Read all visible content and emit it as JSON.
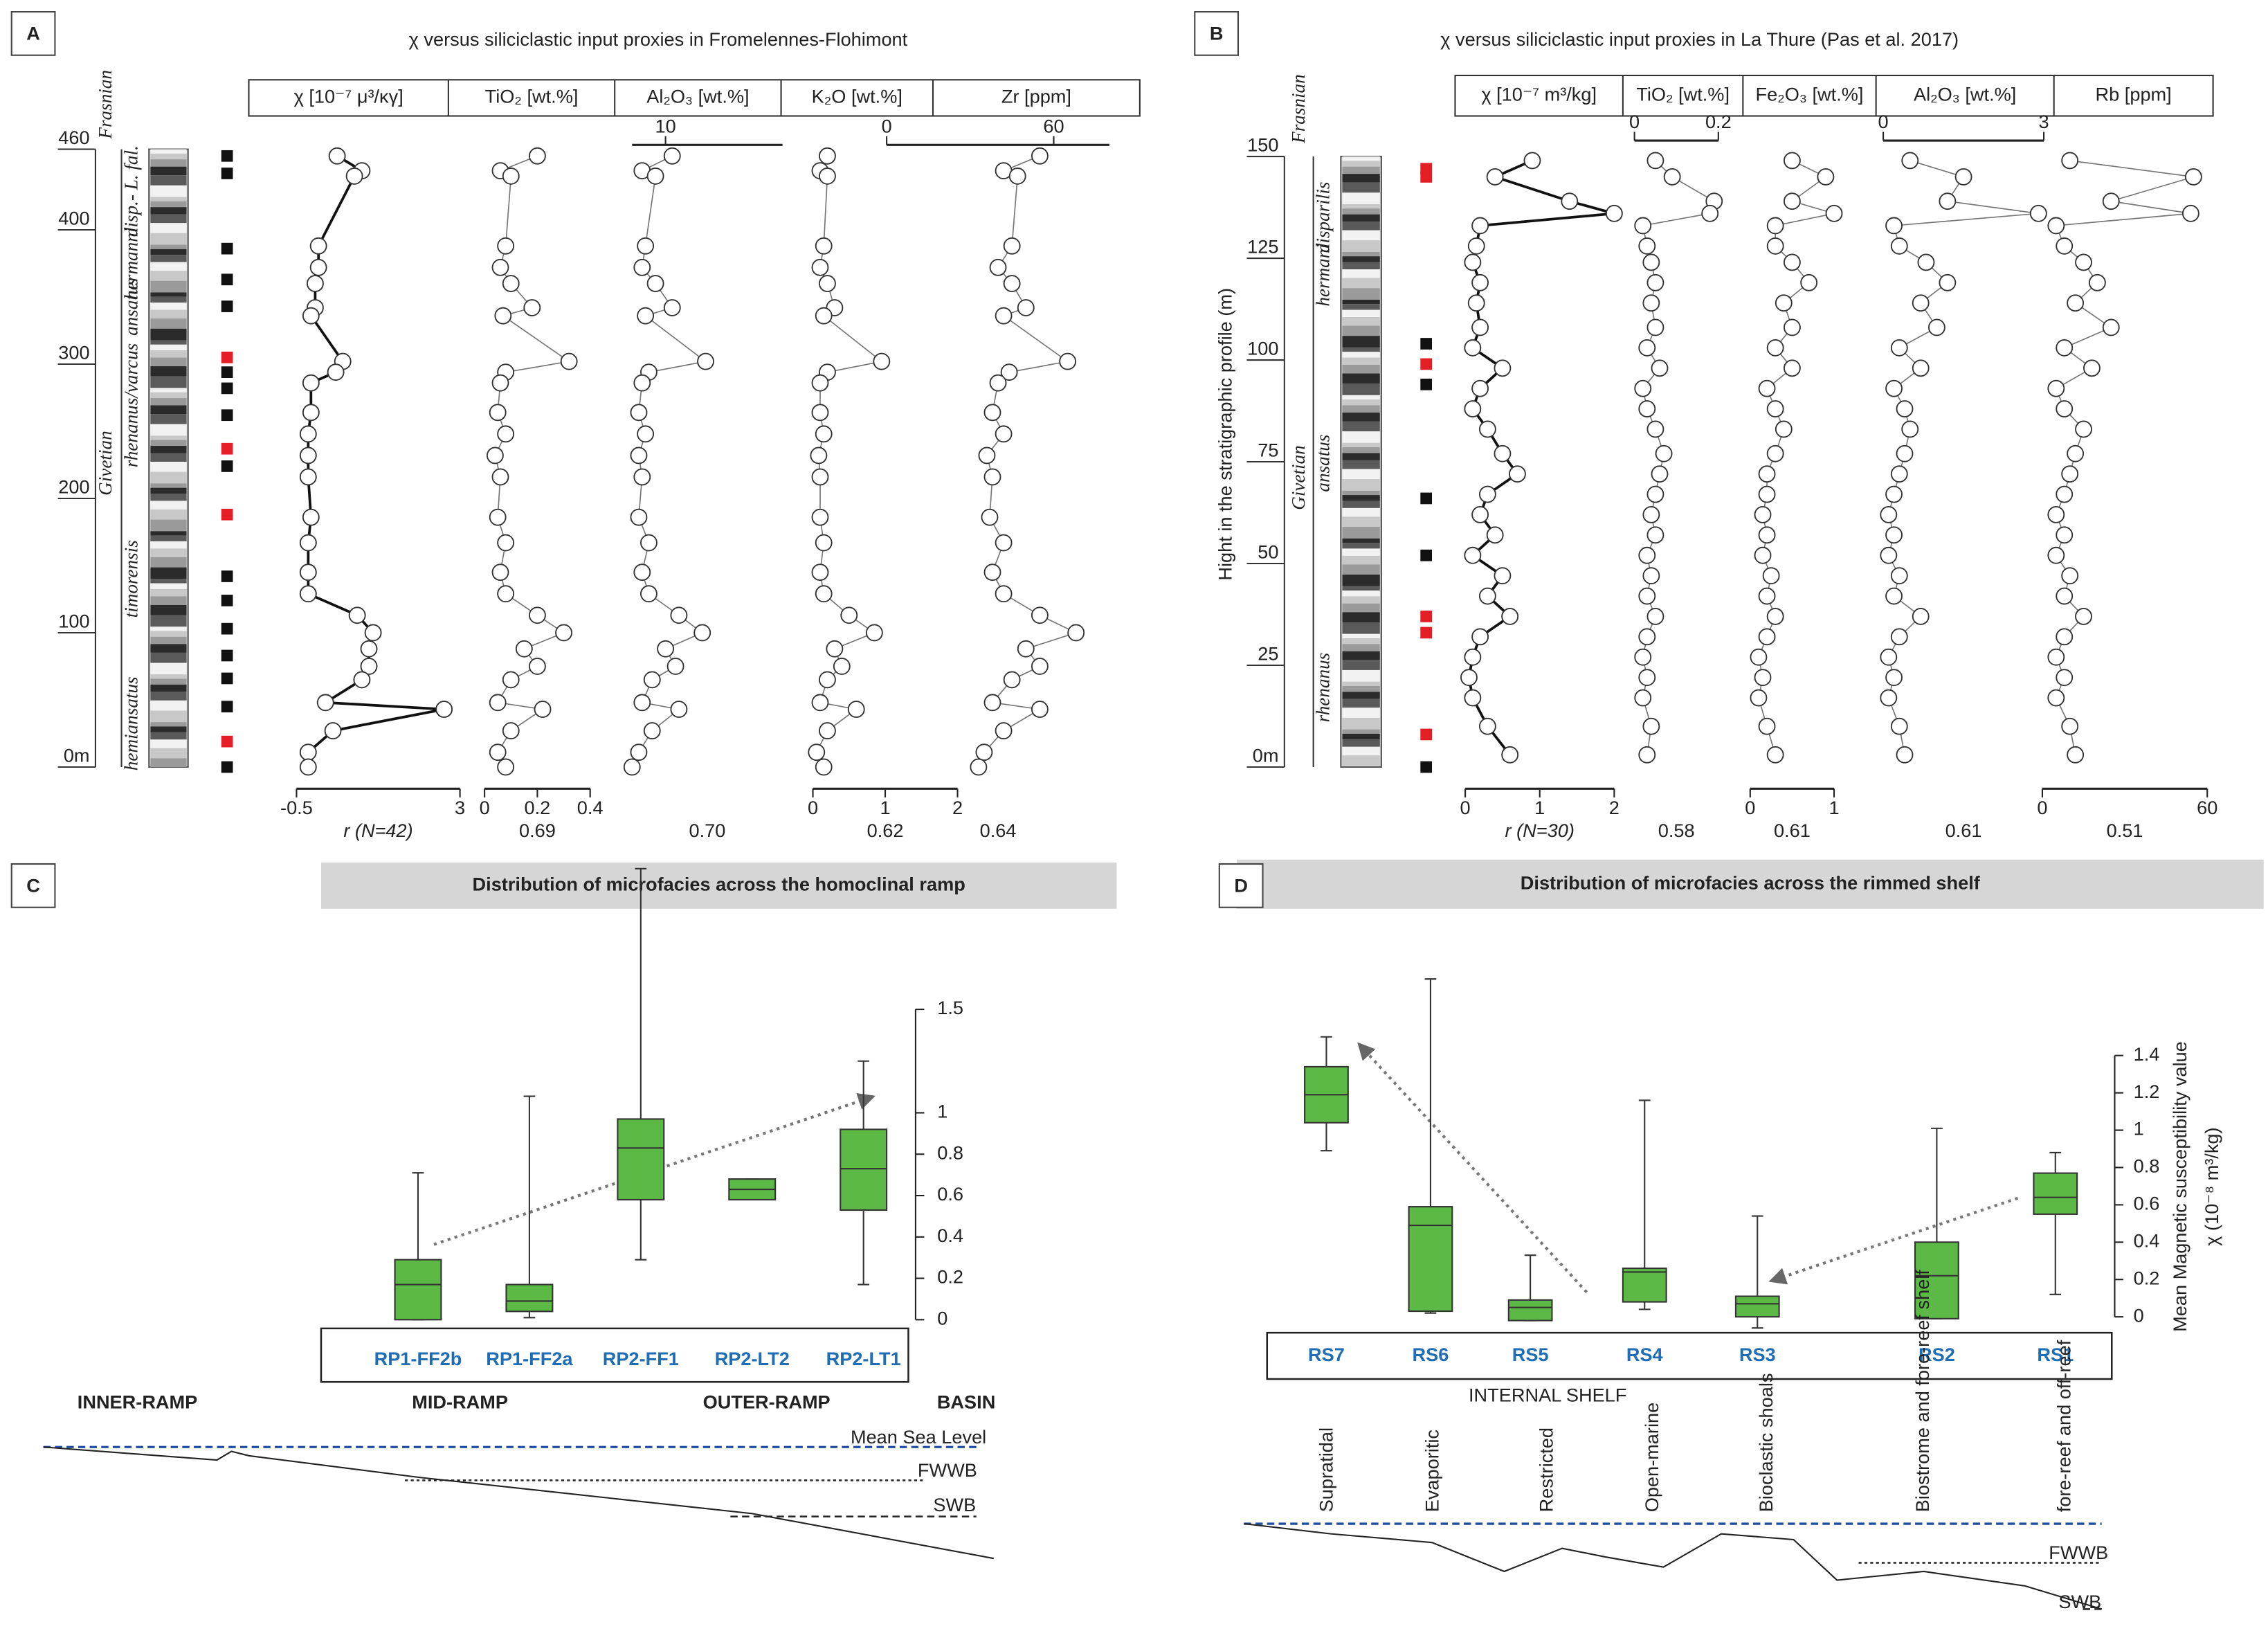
{
  "chart_data": [
    {
      "type": "profile",
      "panel": "A",
      "title": "χ versus siliciclastic input proxies in Fromelennes-Flohimont",
      "ylim": [
        0,
        460
      ],
      "yticks": [
        {
          "value": 0,
          "label": "0m"
        },
        100,
        200,
        300,
        400,
        460
      ],
      "stages": [
        "Frasnian",
        "Givetian"
      ],
      "zones": [
        "hemiansatus",
        "timorensis",
        "rhenanus/varcus",
        "ansatus",
        "hermanni",
        "disp.- L. fal."
      ],
      "samples": {
        "depths": [
          455,
          442,
          386,
          363,
          343,
          305,
          294,
          282,
          262,
          237,
          224,
          188,
          142,
          124,
          103,
          83,
          66,
          45,
          19,
          0
        ],
        "colors": [
          "#111111",
          "#111111",
          "#111111",
          "#111111",
          "#111111",
          "#e31e24",
          "#111111",
          "#111111",
          "#111111",
          "#e31e24",
          "#111111",
          "#e31e24",
          "#111111",
          "#111111",
          "#111111",
          "#111111",
          "#111111",
          "#111111",
          "#e31e24",
          "#111111"
        ]
      },
      "depths": [
        455,
        444,
        440,
        388,
        372,
        360,
        342,
        336,
        302,
        294,
        286,
        264,
        248,
        232,
        216,
        186,
        167,
        145,
        129,
        113,
        100,
        88,
        75,
        65,
        48,
        43,
        27,
        11,
        0
      ],
      "series": [
        {
          "name": "χ [10⁻⁷ μ³/κγ]",
          "color": "#111111",
          "xlim": [
            -0.5,
            3
          ],
          "xticks": [
            -0.5,
            3
          ],
          "axis_position": "bottom",
          "correlation": "r (N=42)",
          "values": [
            0.37,
            0.9,
            0.74,
            -0.03,
            -0.03,
            -0.1,
            -0.1,
            -0.19,
            0.49,
            0.34,
            -0.19,
            -0.19,
            -0.25,
            -0.25,
            -0.25,
            -0.19,
            -0.25,
            -0.25,
            -0.25,
            0.8,
            1.14,
            1.05,
            1.05,
            0.9,
            0.12,
            2.66,
            0.28,
            -0.25,
            -0.25
          ]
        },
        {
          "name": "TiO₂ [wt.%]",
          "color": "#777777",
          "xlim": [
            0,
            0.4
          ],
          "xticks": [
            0,
            0.2,
            0.4
          ],
          "axis_position": "bottom",
          "correlation": 0.69,
          "values": [
            0.2,
            0.06,
            0.1,
            0.08,
            0.06,
            0.1,
            0.18,
            0.07,
            0.32,
            0.08,
            0.06,
            0.05,
            0.08,
            0.04,
            0.06,
            0.05,
            0.08,
            0.06,
            0.08,
            0.2,
            0.3,
            0.15,
            0.2,
            0.1,
            0.05,
            0.22,
            0.1,
            0.05,
            0.08
          ]
        },
        {
          "name": "Al₂O₃ [wt.%]",
          "color": "#777777",
          "xlim": [
            0,
            45
          ],
          "xticks": [
            10
          ],
          "axis_position": "top",
          "correlation": {
            "value": 0.7,
            "label": "0.70"
          },
          "values": [
            12,
            3,
            7,
            4,
            3,
            7,
            12,
            4,
            22,
            5,
            3,
            2,
            4,
            2,
            3,
            2,
            5,
            3,
            5,
            14,
            21,
            10,
            13,
            6,
            3,
            14,
            6,
            2,
            0
          ]
        },
        {
          "name": "K₂O [wt.%]",
          "color": "#777777",
          "xlim": [
            0,
            2
          ],
          "xticks": [
            0,
            1,
            2
          ],
          "axis_position": "bottom",
          "correlation": 0.62,
          "values": [
            0.2,
            0.1,
            0.2,
            0.15,
            0.1,
            0.2,
            0.3,
            0.15,
            0.95,
            0.2,
            0.1,
            0.1,
            0.15,
            0.08,
            0.1,
            0.1,
            0.15,
            0.1,
            0.15,
            0.5,
            0.85,
            0.3,
            0.4,
            0.2,
            0.1,
            0.6,
            0.2,
            0.05,
            0.15
          ]
        },
        {
          "name": "Zr [ppm]",
          "color": "#777777",
          "xlim": [
            0,
            80
          ],
          "xticks": [
            0,
            60
          ],
          "axis_position": "top",
          "correlation": 0.64,
          "values": [
            55,
            42,
            47,
            45,
            40,
            45,
            50,
            42,
            65,
            44,
            40,
            38,
            42,
            36,
            38,
            37,
            42,
            38,
            42,
            55,
            68,
            50,
            55,
            45,
            38,
            55,
            42,
            35,
            33
          ]
        }
      ]
    },
    {
      "type": "profile",
      "panel": "B",
      "title": "χ versus siliciclastic input proxies in La Thure (Pas et al. 2017)",
      "y_label": "Hight in the stratigraphic profile (m)",
      "ylim": [
        0,
        150
      ],
      "yticks": [
        {
          "value": 0,
          "label": "0m"
        },
        25,
        50,
        75,
        100,
        125,
        150
      ],
      "stages": [
        "Frasnian",
        "Givetian"
      ],
      "zones": [
        "rhenanus",
        "ansatus",
        "hermani",
        "disparilis"
      ],
      "samples": {
        "depths": [
          147,
          145,
          104,
          99,
          94,
          66,
          52,
          37,
          33,
          8,
          0
        ],
        "colors": [
          "#e31e24",
          "#e31e24",
          "#111111",
          "#e31e24",
          "#111111",
          "#111111",
          "#111111",
          "#e31e24",
          "#e31e24",
          "#e31e24",
          "#111111"
        ]
      },
      "depths": [
        149,
        145,
        139,
        136,
        133,
        128,
        124,
        119,
        114,
        108,
        103,
        98,
        93,
        88,
        83,
        77,
        72,
        67,
        62,
        57,
        52,
        47,
        42,
        37,
        32,
        27,
        22,
        17,
        10,
        3
      ],
      "series": [
        {
          "name": "χ [10⁻⁷ m³/kg]",
          "color": "#111111",
          "xlim": [
            0,
            2
          ],
          "xticks": [
            0,
            1,
            2
          ],
          "axis_position": "bottom",
          "correlation": "r (N=30)",
          "values": [
            0.9,
            0.4,
            1.4,
            2.0,
            0.2,
            0.15,
            0.1,
            0.2,
            0.15,
            0.2,
            0.1,
            0.5,
            0.2,
            0.1,
            0.3,
            0.5,
            0.7,
            0.3,
            0.2,
            0.4,
            0.1,
            0.5,
            0.3,
            0.6,
            0.2,
            0.1,
            0.05,
            0.1,
            0.3,
            0.6
          ]
        },
        {
          "name": "TiO₂ [wt.%]",
          "color": "#777777",
          "xlim": [
            0,
            0.2
          ],
          "xticks": [
            0,
            0.2
          ],
          "axis_position": "top",
          "correlation": 0.58,
          "values": [
            0.05,
            0.09,
            0.19,
            0.18,
            0.02,
            0.03,
            0.04,
            0.05,
            0.04,
            0.05,
            0.03,
            0.06,
            0.02,
            0.03,
            0.05,
            0.07,
            0.06,
            0.05,
            0.04,
            0.05,
            0.03,
            0.04,
            0.03,
            0.05,
            0.03,
            0.02,
            0.03,
            0.02,
            0.04,
            0.03
          ]
        },
        {
          "name": "Fe₂O₃ [wt.%]",
          "color": "#777777",
          "xlim": [
            0,
            1
          ],
          "xticks": [
            0,
            1
          ],
          "axis_position": "bottom",
          "correlation": 0.61,
          "values": [
            0.5,
            0.9,
            0.5,
            1.0,
            0.3,
            0.3,
            0.5,
            0.7,
            0.4,
            0.5,
            0.3,
            0.5,
            0.2,
            0.3,
            0.4,
            0.3,
            0.2,
            0.2,
            0.15,
            0.2,
            0.15,
            0.25,
            0.2,
            0.3,
            0.2,
            0.1,
            0.15,
            0.1,
            0.2,
            0.3
          ]
        },
        {
          "name": "Al₂O₃ [wt.%]",
          "color": "#777777",
          "xlim": [
            0,
            3
          ],
          "xticks": [
            0,
            3
          ],
          "axis_position": "top",
          "correlation": 0.61,
          "values": [
            0.5,
            1.5,
            1.2,
            2.9,
            0.2,
            0.3,
            0.8,
            1.2,
            0.7,
            1.0,
            0.3,
            0.7,
            0.2,
            0.4,
            0.5,
            0.4,
            0.3,
            0.2,
            0.1,
            0.2,
            0.1,
            0.3,
            0.2,
            0.7,
            0.3,
            0.1,
            0.2,
            0.1,
            0.3,
            0.4
          ]
        },
        {
          "name": "Rb [ppm]",
          "color": "#777777",
          "xlim": [
            0,
            60
          ],
          "xticks": [
            0,
            60
          ],
          "axis_position": "bottom",
          "correlation": 0.51,
          "values": [
            10,
            55,
            25,
            54,
            5,
            8,
            15,
            20,
            12,
            25,
            8,
            18,
            5,
            8,
            15,
            12,
            10,
            8,
            5,
            8,
            5,
            10,
            8,
            15,
            8,
            5,
            8,
            5,
            10,
            12
          ]
        }
      ]
    },
    {
      "type": "box",
      "panel": "C",
      "title": "Distribution of microfacies across the homoclinal ramp",
      "categories": [
        "RP1-FF2b",
        "RP1-FF2a",
        "RP2-FF1",
        "RP2-LT2",
        "RP2-LT1"
      ],
      "min": [
        0,
        0.01,
        0.29,
        0.58,
        0.17
      ],
      "q1": [
        0,
        0.04,
        0.58,
        0.58,
        0.53
      ],
      "median": [
        0.17,
        0.09,
        0.83,
        0.63,
        0.73
      ],
      "q3": [
        0.29,
        0.17,
        0.97,
        0.68,
        0.92
      ],
      "max": [
        0.71,
        1.08,
        2.18,
        0.68,
        1.25
      ],
      "color": "#5cb946",
      "ylim": [
        0,
        1.5
      ],
      "yticks": [
        0,
        0.2,
        0.4,
        0.6,
        0.8,
        1,
        1.5
      ],
      "environments": [
        "INNER-RAMP",
        "MID-RAMP",
        "OUTER-RAMP",
        "BASIN"
      ],
      "levels": [
        "Mean Sea Level",
        "FWWB",
        "SWB"
      ]
    },
    {
      "type": "box",
      "panel": "D",
      "title": "Distribution of microfacies across the rimmed shelf",
      "y_label": "Mean Magnetic susceptibility value",
      "y_unit": "χ (10⁻⁸ m³/kg)",
      "categories": [
        "RS7",
        "RS6",
        "RS5",
        "RS4",
        "RS3",
        "RS2",
        "RS1"
      ],
      "min": [
        0.89,
        0.02,
        -0.02,
        0.04,
        -0.06,
        -0.01,
        0.12
      ],
      "q1": [
        1.04,
        0.03,
        -0.02,
        0.08,
        0,
        -0.01,
        0.55
      ],
      "median": [
        1.19,
        0.49,
        0.05,
        0.24,
        0.07,
        0.22,
        0.64
      ],
      "q3": [
        1.34,
        0.59,
        0.09,
        0.26,
        0.11,
        0.4,
        0.77
      ],
      "max": [
        1.5,
        1.81,
        0.33,
        1.16,
        0.54,
        1.01,
        0.88
      ],
      "color": "#5cb946",
      "ylim": [
        0,
        1.4
      ],
      "yticks": [
        0,
        0.2,
        0.4,
        0.6,
        0.8,
        1,
        1.2,
        1.4
      ],
      "group": "INTERNAL SHELF",
      "environments": [
        "Supratidal",
        "Evaporitic",
        "Restricted",
        "Open-marine",
        "Bioclastic shoals",
        "Biostrome and fore-reef shelf",
        "fore-reef and off-reef"
      ],
      "levels": [
        "FWWB",
        "SWB"
      ]
    }
  ]
}
